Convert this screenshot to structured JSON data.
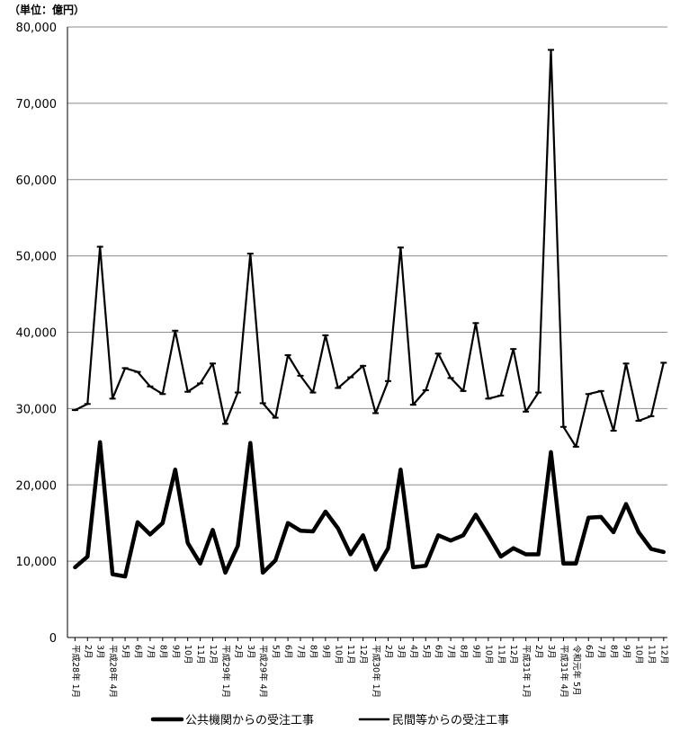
{
  "chart_data": {
    "type": "line",
    "unit_label": "（単位：億円）",
    "ylim": [
      0,
      80000
    ],
    "yticks": [
      "0",
      "10,000",
      "20,000",
      "30,000",
      "40,000",
      "50,000",
      "60,000",
      "70,000",
      "80,000"
    ],
    "grid": true,
    "legend_position": "bottom",
    "categories": [
      "平成28年 1月",
      "2月",
      "3月",
      "平成28年 4月",
      "5月",
      "6月",
      "7月",
      "8月",
      "9月",
      "10月",
      "11月",
      "12月",
      "平成29年 1月",
      "2月",
      "3月",
      "平成29年 4月",
      "5月",
      "6月",
      "7月",
      "8月",
      "9月",
      "10月",
      "11月",
      "12月",
      "平成30年 1月",
      "2月",
      "3月",
      "4月",
      "5月",
      "6月",
      "7月",
      "8月",
      "9月",
      "10月",
      "11月",
      "12月",
      "平成31年 1月",
      "2月",
      "3月",
      "平成31年 4月",
      "令和元年 5月",
      "6月",
      "7月",
      "8月",
      "9月",
      "10月",
      "11月",
      "12月"
    ],
    "series": [
      {
        "name": "公共機関からの受注工事",
        "line_width": "thick",
        "values": [
          9200,
          10600,
          25600,
          8300,
          8000,
          15100,
          13500,
          15000,
          22000,
          12400,
          9700,
          14100,
          8500,
          12000,
          25500,
          8500,
          10100,
          15000,
          14000,
          13900,
          16500,
          14300,
          10900,
          13400,
          8900,
          11700,
          22000,
          9200,
          9400,
          13400,
          12700,
          13400,
          16100,
          13400,
          10600,
          11700,
          10900,
          10900,
          24300,
          9700,
          9700,
          15700,
          15800,
          13800,
          17500,
          13800,
          11600,
          11200
        ]
      },
      {
        "name": "民間等からの受注工事",
        "line_width": "thin",
        "values": [
          29800,
          30600,
          51200,
          31300,
          35300,
          34800,
          32900,
          31900,
          40200,
          32200,
          33300,
          35900,
          28000,
          32100,
          50300,
          30700,
          28800,
          37000,
          34300,
          32100,
          39600,
          32700,
          34100,
          35600,
          29400,
          33600,
          51100,
          30500,
          32400,
          37200,
          34000,
          32300,
          41200,
          31300,
          31700,
          37800,
          29600,
          32100,
          77000,
          27600,
          25000,
          31900,
          32300,
          27100,
          35900,
          28400,
          29000,
          36000
        ]
      }
    ]
  }
}
